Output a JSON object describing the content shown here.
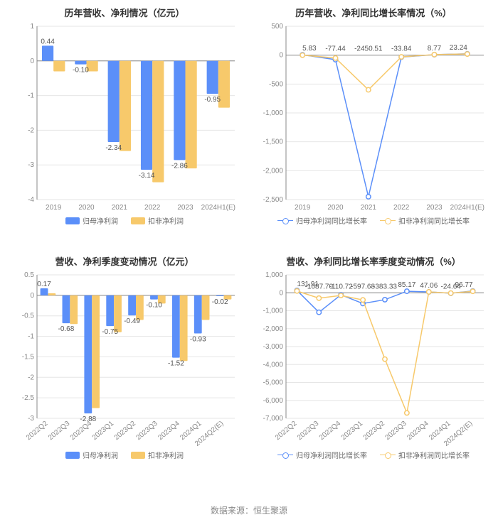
{
  "footer": "数据来源：恒生聚源",
  "colors": {
    "series_a": "#5b8ff9",
    "series_b": "#f7c96b",
    "grid": "#e6e6e6",
    "axis": "#888888",
    "title": "#333333",
    "value_label": "#555555",
    "bg": "#ffffff"
  },
  "title_fontsize": 13,
  "axis_fontsize": 10,
  "value_fontsize": 10,
  "chart1": {
    "type": "bar",
    "title": "历年营收、净利情况（亿元）",
    "categories": [
      "2019",
      "2020",
      "2021",
      "2022",
      "2023",
      "2024H1(E)"
    ],
    "series": [
      {
        "name": "归母净利润",
        "color": "#5b8ff9",
        "values": [
          0.44,
          -0.1,
          -2.34,
          -3.14,
          -2.86,
          -0.95
        ]
      },
      {
        "name": "扣非净利润",
        "color": "#f7c96b",
        "values": [
          -0.3,
          -0.3,
          -2.6,
          -3.5,
          -3.1,
          -1.35
        ]
      }
    ],
    "value_labels": [
      "0.44",
      "-0.10",
      "-2.34",
      "-3.14",
      "-2.86",
      "-0.95"
    ],
    "ylim": [
      -4,
      1
    ],
    "yticks": [
      -4,
      -3,
      -2,
      -1,
      0,
      1
    ],
    "bar_width": 0.35,
    "legend": [
      {
        "label": "归母净利润",
        "color": "#5b8ff9",
        "shape": "swatch"
      },
      {
        "label": "扣非净利润",
        "color": "#f7c96b",
        "shape": "swatch"
      }
    ]
  },
  "chart2": {
    "type": "line",
    "title": "历年营收、净利同比增长率情况（%）",
    "categories": [
      "2019",
      "2020",
      "2021",
      "2022",
      "2023",
      "2024H1(E)"
    ],
    "series": [
      {
        "name": "归母净利润同比增长率",
        "color": "#5b8ff9",
        "values": [
          5.83,
          -77.44,
          -2450.51,
          -33.84,
          8.77,
          23.24
        ]
      },
      {
        "name": "扣非净利润同比增长率",
        "color": "#f7c96b",
        "values": [
          0,
          -50,
          -600,
          -30,
          10,
          20
        ]
      }
    ],
    "value_labels": [
      "5.83",
      "-77.44",
      "-2450.51",
      "-33.84",
      "8.77",
      "23.24"
    ],
    "ylim": [
      -2500,
      500
    ],
    "yticks": [
      -2500,
      -2000,
      -1500,
      -1000,
      -500,
      0,
      500
    ],
    "legend": [
      {
        "label": "归母净利润同比增长率",
        "color": "#5b8ff9",
        "shape": "line"
      },
      {
        "label": "扣非净利润同比增长率",
        "color": "#f7c96b",
        "shape": "line"
      }
    ]
  },
  "chart3": {
    "type": "bar",
    "title": "营收、净利季度变动情况（亿元）",
    "categories": [
      "2022Q2",
      "2022Q3",
      "2022Q4",
      "2023Q1",
      "2023Q2",
      "2023Q3",
      "2023Q4",
      "2024Q1",
      "2024Q2(E)"
    ],
    "rotate_xticks": -40,
    "series": [
      {
        "name": "归母净利润",
        "color": "#5b8ff9",
        "values": [
          0.17,
          -0.68,
          -2.88,
          -0.75,
          -0.49,
          -0.1,
          -1.52,
          -0.93,
          -0.02
        ]
      },
      {
        "name": "扣非净利润",
        "color": "#f7c96b",
        "values": [
          0.05,
          -0.7,
          -2.75,
          -0.9,
          -0.6,
          -0.2,
          -1.6,
          -0.6,
          -0.1
        ]
      }
    ],
    "value_labels": [
      "0.17",
      "-0.68",
      "-2.88",
      "-0.75",
      "-0.49",
      "-0.10",
      "-1.52",
      "-0.93",
      "-0.02"
    ],
    "ylim": [
      -3,
      0.5
    ],
    "yticks": [
      -3,
      -2.5,
      -2,
      -1.5,
      -1,
      -0.5,
      0,
      0.5
    ],
    "bar_width": 0.35,
    "legend": [
      {
        "label": "归母净利润",
        "color": "#5b8ff9",
        "shape": "swatch"
      },
      {
        "label": "扣非净利润",
        "color": "#f7c96b",
        "shape": "swatch"
      }
    ]
  },
  "chart4": {
    "type": "line",
    "title": "营收、净利同比增长率季度变动情况（%）",
    "categories": [
      "2022Q2",
      "2022Q3",
      "2022Q4",
      "2023Q1",
      "2023Q2",
      "2023Q3",
      "2023Q4",
      "2024Q1",
      "2024Q2(E)"
    ],
    "rotate_xticks": -40,
    "series": [
      {
        "name": "归母净利润同比增长率",
        "color": "#5b8ff9",
        "values": [
          131.91,
          -1087.7,
          -110.72,
          -597.68,
          -383.33,
          85.17,
          47.06,
          -24.64,
          96.77
        ]
      },
      {
        "name": "扣非净利润同比增长率",
        "color": "#f7c96b",
        "values": [
          100,
          -300,
          -150,
          -400,
          -3700,
          -6700,
          50,
          -20,
          80
        ]
      }
    ],
    "value_labels": [
      "131.91",
      "-1087.70",
      "-110.72",
      "-597.68",
      "-383.33",
      "85.17",
      "47.06",
      "-24.64",
      "96.77"
    ],
    "value_label_x_index": [
      0,
      1,
      2,
      3,
      4,
      5,
      6,
      7,
      8
    ],
    "ylim": [
      -7000,
      1000
    ],
    "yticks": [
      -7000,
      -6000,
      -5000,
      -4000,
      -3000,
      -2000,
      -1000,
      0,
      1000
    ],
    "legend": [
      {
        "label": "归母净利润同比增长率",
        "color": "#5b8ff9",
        "shape": "line"
      },
      {
        "label": "扣非净利润同比增长率",
        "color": "#f7c96b",
        "shape": "line"
      }
    ]
  }
}
